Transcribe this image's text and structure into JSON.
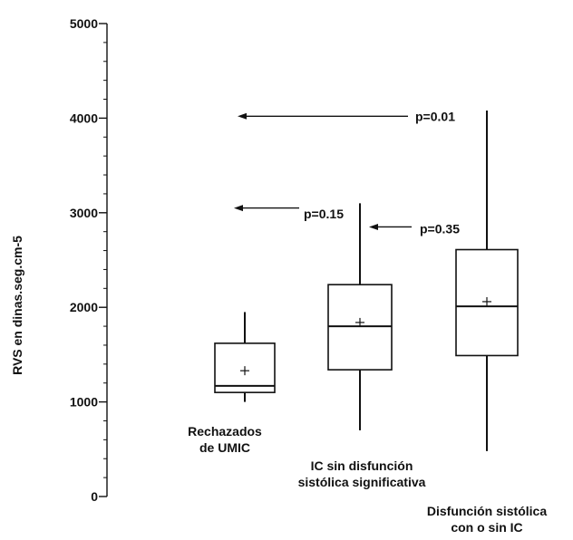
{
  "chart_data": {
    "type": "box",
    "ylabel": "RVS en dinas.seg.cm-5",
    "ylim": [
      0,
      5000
    ],
    "yticks": [
      0,
      1000,
      2000,
      3000,
      4000,
      5000
    ],
    "grid": false,
    "groups": [
      {
        "label_lines": [
          "Rechazados",
          "de UMIC"
        ],
        "whisker_low": 1000,
        "q1": 1100,
        "median": 1170,
        "q3": 1620,
        "whisker_high": 1950,
        "mean": 1330
      },
      {
        "label_lines": [
          "IC sin disfunción",
          "sistólica significativa"
        ],
        "whisker_low": 700,
        "q1": 1340,
        "median": 1800,
        "q3": 2240,
        "whisker_high": 3100,
        "mean": 1840
      },
      {
        "label_lines": [
          "Disfunción sistólica",
          "con o sin IC"
        ],
        "whisker_low": 480,
        "q1": 1490,
        "median": 2010,
        "q3": 2610,
        "whisker_high": 4080,
        "mean": 2060
      }
    ],
    "annotations": [
      {
        "text": "p=0.01",
        "arrow_y": 4020,
        "label_y": 4020
      },
      {
        "text": "p=0.15",
        "arrow_y": 3050,
        "label_y": 2990
      },
      {
        "text": "p=0.35",
        "arrow_y": 2850,
        "label_y": 2830
      }
    ]
  }
}
